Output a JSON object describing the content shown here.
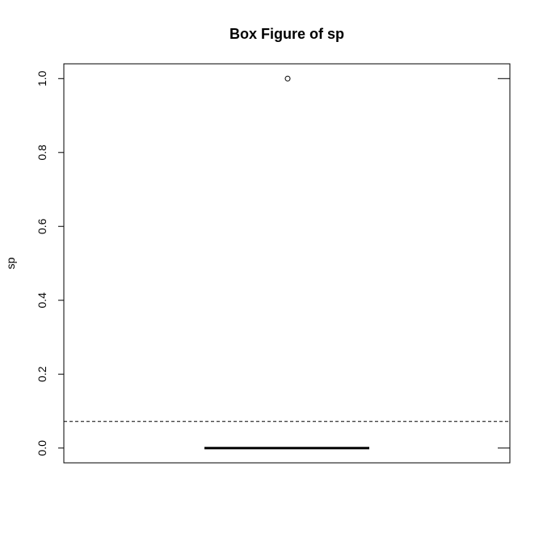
{
  "chart_data": {
    "type": "box",
    "title": "Box Figure of sp",
    "xlabel": "",
    "ylabel": "sp",
    "ylim": [
      -0.04,
      1.04
    ],
    "yticks": [
      0.0,
      0.2,
      0.4,
      0.6,
      0.8,
      1.0
    ],
    "ytick_labels": [
      "0.0",
      "0.2",
      "0.4",
      "0.6",
      "0.8",
      "1.0"
    ],
    "box": {
      "min": 0.0,
      "q1": 0.0,
      "median": 0.0,
      "q3": 0.0,
      "max": 0.0,
      "outliers": [
        1.0
      ]
    },
    "reference_line": {
      "value": 0.072,
      "style": "dashed"
    },
    "grid": false,
    "legend": "none"
  }
}
